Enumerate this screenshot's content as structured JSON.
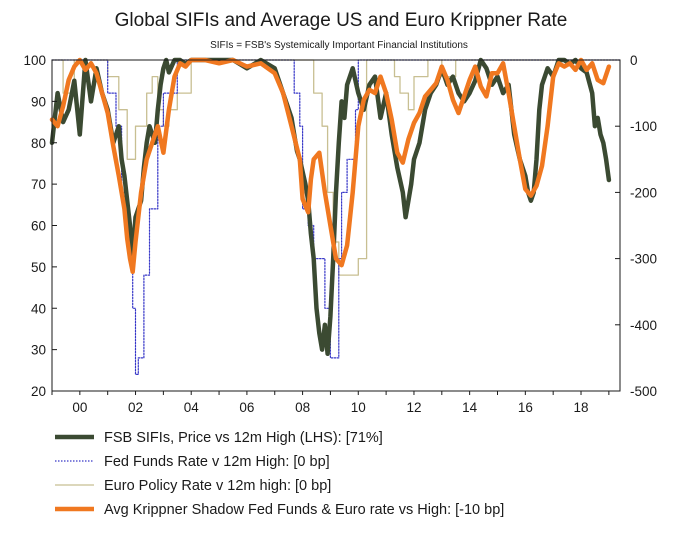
{
  "chart_data": {
    "type": "line",
    "title": "Global SIFIs and Average US and Euro Krippner Rate",
    "subtitle": "SIFIs = FSB's Systemically Important Financial Institutions",
    "x_ticks": [
      "00",
      "02",
      "04",
      "06",
      "08",
      "10",
      "12",
      "14",
      "16",
      "18"
    ],
    "x_tick_years": [
      2000,
      2002,
      2004,
      2006,
      2008,
      2010,
      2012,
      2014,
      2016,
      2018
    ],
    "xlim": [
      1999.0,
      2019.4
    ],
    "y_left": {
      "lim": [
        20,
        100
      ],
      "ticks": [
        "20",
        "30",
        "40",
        "50",
        "60",
        "70",
        "80",
        "90",
        "100"
      ]
    },
    "y_right": {
      "lim": [
        -500,
        0
      ],
      "ticks": [
        "-500",
        "-400",
        "-300",
        "-200",
        "-100",
        "0"
      ]
    },
    "grid": false,
    "legend_position": "bottom",
    "series": [
      {
        "name": "FSB SIFIs, Price vs 12m High (LHS): [71%]",
        "axis": "left",
        "color": "#3b4a32",
        "style": "solid-thick",
        "x": [
          1999.0,
          1999.2,
          1999.4,
          1999.6,
          1999.8,
          2000.0,
          2000.2,
          2000.4,
          2000.6,
          2000.8,
          2001.0,
          2001.2,
          2001.4,
          2001.5,
          2001.6,
          2001.7,
          2001.8,
          2001.9,
          2002.0,
          2002.2,
          2002.3,
          2002.4,
          2002.5,
          2002.6,
          2002.7,
          2002.8,
          2002.9,
          2003.0,
          2003.1,
          2003.2,
          2003.4,
          2003.6,
          2003.8,
          2004.0,
          2004.5,
          2005.0,
          2005.5,
          2006.0,
          2006.5,
          2007.0,
          2007.2,
          2007.4,
          2007.6,
          2007.7,
          2007.8,
          2007.9,
          2008.0,
          2008.1,
          2008.2,
          2008.3,
          2008.4,
          2008.5,
          2008.6,
          2008.7,
          2008.8,
          2008.9,
          2009.0,
          2009.1,
          2009.2,
          2009.3,
          2009.4,
          2009.5,
          2009.6,
          2009.8,
          2010.0,
          2010.2,
          2010.4,
          2010.6,
          2010.8,
          2011.0,
          2011.2,
          2011.4,
          2011.6,
          2011.7,
          2011.8,
          2011.9,
          2012.0,
          2012.2,
          2012.4,
          2012.6,
          2012.8,
          2013.0,
          2013.2,
          2013.4,
          2013.6,
          2013.8,
          2014.0,
          2014.2,
          2014.4,
          2014.6,
          2014.8,
          2015.0,
          2015.2,
          2015.4,
          2015.6,
          2015.8,
          2016.0,
          2016.1,
          2016.2,
          2016.3,
          2016.4,
          2016.5,
          2016.6,
          2016.8,
          2017.0,
          2017.2,
          2017.4,
          2017.6,
          2017.8,
          2018.0,
          2018.2,
          2018.4,
          2018.5,
          2018.6,
          2018.7,
          2018.8,
          2018.9,
          2019.0
        ],
        "values": [
          80,
          92,
          85,
          88,
          95,
          82,
          100,
          90,
          98,
          92,
          88,
          80,
          84,
          76,
          72,
          66,
          60,
          52,
          62,
          66,
          74,
          80,
          84,
          82,
          80,
          88,
          94,
          98,
          100,
          97,
          100,
          100,
          99,
          100,
          100,
          100,
          100,
          98,
          100,
          98,
          94,
          90,
          86,
          82,
          78,
          76,
          73,
          70,
          66,
          58,
          52,
          40,
          34,
          30,
          36,
          29,
          38,
          52,
          68,
          80,
          90,
          86,
          94,
          98,
          92,
          88,
          94,
          96,
          86,
          92,
          82,
          74,
          68,
          62,
          66,
          70,
          76,
          80,
          88,
          92,
          94,
          98,
          94,
          96,
          92,
          90,
          92,
          95,
          100,
          98,
          94,
          96,
          92,
          94,
          82,
          76,
          72,
          68,
          66,
          68,
          76,
          88,
          94,
          98,
          96,
          100,
          100,
          99,
          100,
          98,
          97,
          92,
          84,
          86,
          82,
          80,
          76,
          71
        ],
        "_note": "values read from the left axis"
      },
      {
        "name": "Fed Funds Rate v 12m High: [0 bp]",
        "axis": "right",
        "color": "#3838c8",
        "style": "dotted-step",
        "x": [
          1999.0,
          2000.4,
          2001.0,
          2001.3,
          2001.5,
          2001.7,
          2001.9,
          2002.0,
          2002.1,
          2002.3,
          2002.5,
          2002.8,
          2003.0,
          2003.5,
          2004.0,
          2004.5,
          2007.5,
          2007.7,
          2007.9,
          2008.0,
          2008.2,
          2008.4,
          2008.8,
          2009.0,
          2009.3,
          2009.4,
          2009.6,
          2009.9,
          2010.0,
          2019.4
        ],
        "values": [
          0,
          0,
          -50,
          -100,
          -200,
          -275,
          -375,
          -475,
          -450,
          -325,
          -225,
          -100,
          -50,
          0,
          0,
          0,
          0,
          -50,
          -100,
          -225,
          -250,
          -300,
          -375,
          -450,
          -300,
          -200,
          -150,
          -75,
          0,
          0
        ]
      },
      {
        "name": "Euro Policy Rate v 12m high: [0 bp]",
        "axis": "right",
        "color": "#c8bf92",
        "style": "solid-step",
        "x": [
          1999.0,
          1999.4,
          1999.8,
          2000.0,
          2001.0,
          2001.4,
          2001.7,
          2002.0,
          2002.4,
          2002.6,
          2002.8,
          2003.0,
          2003.2,
          2003.5,
          2004.0,
          2005.5,
          2006.0,
          2007.8,
          2008.2,
          2008.4,
          2008.7,
          2008.9,
          2009.1,
          2009.3,
          2009.7,
          2010.0,
          2010.3,
          2011.0,
          2011.3,
          2011.5,
          2011.8,
          2012.0,
          2012.5,
          2013.0,
          2013.5,
          2014.0,
          2014.5,
          2015.0,
          2016.0,
          2017.0,
          2017.5,
          2018.0,
          2019.4
        ],
        "values": [
          0,
          -50,
          0,
          0,
          -25,
          -75,
          -150,
          -100,
          -50,
          -25,
          -75,
          -100,
          -75,
          -50,
          0,
          0,
          0,
          0,
          0,
          -50,
          -100,
          -200,
          -275,
          -325,
          -325,
          -300,
          0,
          0,
          -25,
          -50,
          -75,
          -25,
          0,
          -25,
          0,
          0,
          0,
          0,
          0,
          0,
          0,
          0,
          0
        ]
      },
      {
        "name": "Avg Krippner Shadow Fed Funds & Euro rate vs High: [-10 bp]",
        "axis": "right",
        "color": "#f07820",
        "style": "solid-thick",
        "x": [
          1999.0,
          1999.2,
          1999.4,
          1999.6,
          1999.8,
          2000.0,
          2000.2,
          2000.4,
          2000.6,
          2000.8,
          2001.0,
          2001.2,
          2001.4,
          2001.6,
          2001.7,
          2001.8,
          2001.9,
          2002.0,
          2002.2,
          2002.4,
          2002.6,
          2002.8,
          2003.0,
          2003.2,
          2003.4,
          2003.6,
          2003.8,
          2004.0,
          2004.5,
          2005.0,
          2005.5,
          2006.0,
          2006.5,
          2007.0,
          2007.3,
          2007.6,
          2007.9,
          2008.0,
          2008.2,
          2008.3,
          2008.4,
          2008.6,
          2008.8,
          2009.0,
          2009.2,
          2009.4,
          2009.6,
          2009.8,
          2010.0,
          2010.2,
          2010.4,
          2010.6,
          2010.8,
          2011.0,
          2011.2,
          2011.4,
          2011.6,
          2011.8,
          2012.0,
          2012.2,
          2012.4,
          2012.6,
          2012.8,
          2013.0,
          2013.2,
          2013.4,
          2013.6,
          2013.8,
          2014.0,
          2014.2,
          2014.4,
          2014.6,
          2014.8,
          2015.0,
          2015.2,
          2015.4,
          2015.6,
          2015.8,
          2016.0,
          2016.2,
          2016.4,
          2016.6,
          2016.8,
          2017.0,
          2017.2,
          2017.4,
          2017.6,
          2017.8,
          2018.0,
          2018.2,
          2018.4,
          2018.6,
          2018.8,
          2019.0
        ],
        "values": [
          -90,
          -100,
          -70,
          -30,
          -10,
          0,
          -15,
          -5,
          -20,
          -50,
          -80,
          -130,
          -175,
          -225,
          -270,
          -300,
          -320,
          -275,
          -200,
          -150,
          -125,
          -100,
          -140,
          -75,
          -25,
          -5,
          -10,
          0,
          0,
          -5,
          0,
          -10,
          -5,
          -20,
          -50,
          -100,
          -150,
          -210,
          -230,
          -180,
          -150,
          -140,
          -200,
          -250,
          -300,
          -310,
          -280,
          -200,
          -100,
          -60,
          -45,
          -50,
          -25,
          -50,
          -90,
          -140,
          -155,
          -120,
          -95,
          -80,
          -55,
          -45,
          -35,
          -10,
          -30,
          -60,
          -80,
          -55,
          -30,
          -10,
          -40,
          -55,
          -20,
          -20,
          -5,
          -50,
          -100,
          -150,
          -195,
          -205,
          -190,
          -160,
          -100,
          -25,
          -5,
          -10,
          -5,
          -15,
          0,
          -15,
          -5,
          -30,
          -35,
          -10
        ]
      }
    ]
  }
}
